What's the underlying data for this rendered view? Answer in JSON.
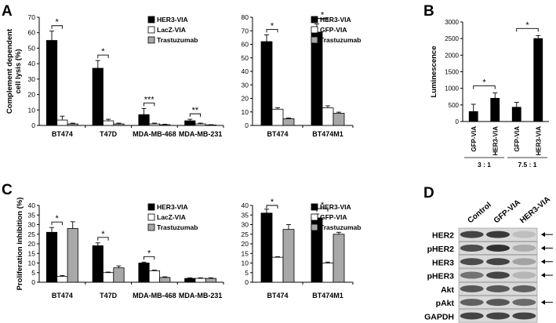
{
  "panel_labels": {
    "A": "A",
    "B": "B",
    "C": "C",
    "D": "D"
  },
  "colors": {
    "black": "#000000",
    "white": "#ffffff",
    "gray": "#a8a8a8",
    "axis": "#000000"
  },
  "chart_data": [
    {
      "id": "A1",
      "type": "bar",
      "panel": "A",
      "ylabel": "Complement dependent cell lysis (%)",
      "ylim": [
        0,
        70
      ],
      "yticks": [
        0,
        10,
        20,
        30,
        40,
        50,
        60,
        70
      ],
      "categories": [
        "BT474",
        "T47D",
        "MDA-MB-468",
        "MDA-MB-231"
      ],
      "series": [
        {
          "name": "HER3-VIA",
          "fill": "black",
          "values": [
            55,
            37,
            7,
            3
          ],
          "errors": [
            6,
            5,
            4,
            1
          ]
        },
        {
          "name": "LacZ-VIA",
          "fill": "white",
          "values": [
            3.5,
            3,
            1,
            1
          ],
          "errors": [
            2.5,
            1,
            0.5,
            0.5
          ]
        },
        {
          "name": "Trastuzumab",
          "fill": "gray",
          "values": [
            1,
            1,
            0.5,
            0.3
          ],
          "errors": [
            0.5,
            0.5,
            0.3,
            0.2
          ]
        }
      ],
      "significance": [
        {
          "cat": 0,
          "label": "*"
        },
        {
          "cat": 1,
          "label": "*"
        },
        {
          "cat": 2,
          "label": "***"
        },
        {
          "cat": 3,
          "label": "**"
        }
      ]
    },
    {
      "id": "A2",
      "type": "bar",
      "panel": "A",
      "ylabel": "",
      "ylim": [
        0,
        80
      ],
      "yticks": [
        0,
        10,
        20,
        30,
        40,
        50,
        60,
        70,
        80
      ],
      "categories": [
        "BT474",
        "BT474M1"
      ],
      "series": [
        {
          "name": "HER3-VIA",
          "fill": "black",
          "values": [
            62,
            69
          ],
          "errors": [
            5,
            6
          ]
        },
        {
          "name": "GFP-VIA",
          "fill": "white",
          "values": [
            12,
            13
          ],
          "errors": [
            1,
            1.5
          ]
        },
        {
          "name": "Trastuzumab",
          "fill": "gray",
          "values": [
            5,
            9
          ],
          "errors": [
            0.5,
            0.8
          ]
        }
      ],
      "significance": [
        {
          "cat": 0,
          "label": "*"
        },
        {
          "cat": 1,
          "label": "*"
        }
      ]
    },
    {
      "id": "B1",
      "type": "bar",
      "panel": "B",
      "ylabel": "Luminescence",
      "ylim": [
        0,
        3000
      ],
      "yticks": [
        0,
        500,
        1000,
        1500,
        2000,
        2500,
        3000
      ],
      "bars": [
        {
          "label": "GFP-VIA",
          "fill": "black",
          "value": 300,
          "error": 220
        },
        {
          "label": "HER3-VIA",
          "fill": "black",
          "value": 700,
          "error": 160
        },
        {
          "label": "GFP-VIA",
          "fill": "black",
          "value": 430,
          "error": 150
        },
        {
          "label": "HER3-VIA",
          "fill": "black",
          "value": 2500,
          "error": 90
        }
      ],
      "groups": [
        {
          "label": "3 : 1",
          "bars": [
            0,
            1
          ]
        },
        {
          "label": "7.5 : 1",
          "bars": [
            2,
            3
          ]
        }
      ],
      "significance": [
        {
          "from": 0,
          "to": 1,
          "label": "*"
        },
        {
          "from": 2,
          "to": 3,
          "label": "*"
        }
      ]
    },
    {
      "id": "C1",
      "type": "bar",
      "panel": "C",
      "ylabel": "Proliferation inhibition (%)",
      "ylim": [
        0,
        40
      ],
      "yticks": [
        0,
        5,
        10,
        15,
        20,
        25,
        30,
        35,
        40
      ],
      "categories": [
        "BT474",
        "T47D",
        "MDA-MB-468",
        "MDA-MB-231"
      ],
      "series": [
        {
          "name": "HER3-VIA",
          "fill": "black",
          "values": [
            26,
            19,
            10,
            2
          ],
          "errors": [
            2.5,
            1.5,
            0.5,
            0.3
          ]
        },
        {
          "name": "LacZ-VIA",
          "fill": "white",
          "values": [
            3,
            5,
            6,
            2
          ],
          "errors": [
            0.5,
            0.3,
            0.3,
            0.3
          ]
        },
        {
          "name": "Trastuzumab",
          "fill": "gray",
          "values": [
            28,
            7.5,
            2.5,
            2
          ],
          "errors": [
            3.5,
            1,
            0.3,
            0.3
          ]
        }
      ],
      "significance": [
        {
          "cat": 0,
          "label": "*"
        },
        {
          "cat": 1,
          "label": "*"
        },
        {
          "cat": 2,
          "label": "*"
        }
      ]
    },
    {
      "id": "C2",
      "type": "bar",
      "panel": "C",
      "ylabel": "",
      "ylim": [
        0,
        40
      ],
      "yticks": [
        0,
        5,
        10,
        15,
        20,
        25,
        30,
        35,
        40
      ],
      "categories": [
        "BT474",
        "BT474M1"
      ],
      "series": [
        {
          "name": "HER3-VIA",
          "fill": "black",
          "values": [
            36,
            33.5
          ],
          "errors": [
            2,
            2
          ]
        },
        {
          "name": "GFP-VIA",
          "fill": "white",
          "values": [
            13,
            10
          ],
          "errors": [
            0.3,
            0.5
          ]
        },
        {
          "name": "Trastuzumab",
          "fill": "gray",
          "values": [
            27.5,
            25
          ],
          "errors": [
            2.5,
            1
          ]
        }
      ],
      "significance": [
        {
          "cat": 0,
          "label": "*"
        },
        {
          "cat": 1,
          "label": "*"
        }
      ]
    }
  ],
  "western_blot": {
    "columns": [
      "Control",
      "GFP-VIA",
      "HER3-VIA"
    ],
    "rows": [
      {
        "label": "HER2",
        "arrow": true,
        "intensity": [
          0.85,
          0.9,
          0.2
        ]
      },
      {
        "label": "pHER2",
        "arrow": true,
        "intensity": [
          0.8,
          0.95,
          0.3
        ]
      },
      {
        "label": "HER3",
        "arrow": true,
        "intensity": [
          0.8,
          0.85,
          0.35
        ]
      },
      {
        "label": "pHER3",
        "arrow": true,
        "intensity": [
          0.6,
          0.85,
          0.25
        ]
      },
      {
        "label": "Akt",
        "arrow": false,
        "intensity": [
          0.75,
          0.75,
          0.7
        ]
      },
      {
        "label": "pAkt",
        "arrow": true,
        "intensity": [
          0.7,
          0.75,
          0.65
        ]
      },
      {
        "label": "GAPDH",
        "arrow": false,
        "intensity": [
          0.85,
          0.85,
          0.85
        ]
      }
    ]
  }
}
